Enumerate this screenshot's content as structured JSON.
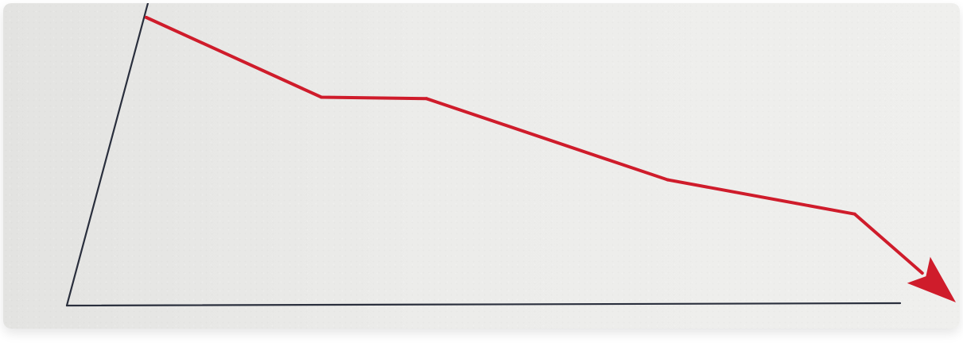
{
  "chart_data": {
    "type": "line",
    "title": "",
    "xlabel": "",
    "ylabel": "",
    "grid": false,
    "series": [
      {
        "values": [
          {
            "x": 0,
            "y": 100
          },
          {
            "x": 22.5,
            "y": 72
          },
          {
            "x": 36.0,
            "y": 71.5
          },
          {
            "x": 67.0,
            "y": 43
          },
          {
            "x": 91.0,
            "y": 31
          },
          {
            "x": 104.0,
            "y": 0
          }
        ]
      }
    ],
    "xlim": [
      0,
      104
    ],
    "ylim": [
      0,
      100
    ],
    "arrow_head": true
  },
  "colors": {
    "series": "#cf1c2b",
    "axis": "#2a2f3d",
    "paper": "#eceeea"
  }
}
